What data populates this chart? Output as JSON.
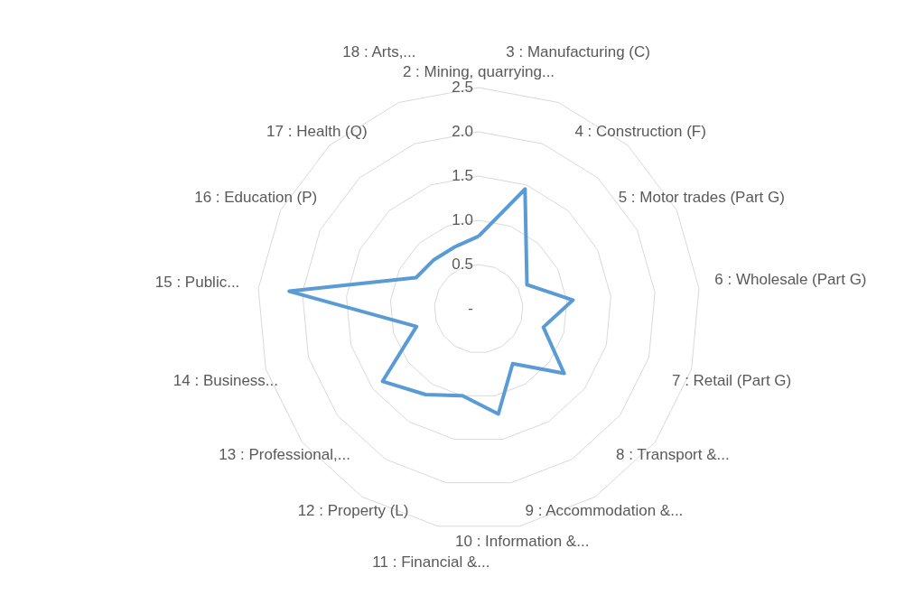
{
  "chart_data": {
    "type": "radar",
    "categories": [
      "2 : Mining, quarrying...",
      "3 : Manufacturing (C)",
      "4 : Construction (F)",
      "5 : Motor trades (Part G)",
      "6 : Wholesale (Part G)",
      "7 : Retail (Part G)",
      "8 : Transport &...",
      "9 : Accommodation &...",
      "10 : Information &...",
      "11 : Financial &...",
      "12 : Property (L)",
      "13 : Professional,...",
      "14 : Business...",
      "15 : Public...",
      "16 : Education (P)",
      "17 : Health (Q)",
      "18 : Arts,..."
    ],
    "series": [
      {
        "color": "#5b9bd5",
        "values": [
          0.82,
          1.45,
          0.8,
          0.61,
          1.07,
          0.76,
          1.21,
          0.73,
          1.21,
          1.0,
          1.14,
          1.36,
          0.73,
          2.15,
          0.79,
          0.75,
          0.75
        ]
      }
    ],
    "ylim": [
      0,
      2.5
    ],
    "yticks": [
      {
        "value": 0,
        "label": "-"
      },
      {
        "value": 0.5,
        "label": "0.5"
      },
      {
        "value": 1,
        "label": "1.0"
      },
      {
        "value": 1.5,
        "label": "1.5"
      },
      {
        "value": 2,
        "label": "2.0"
      },
      {
        "value": 2.5,
        "label": "2.5"
      }
    ],
    "grid": true,
    "marker": "none"
  }
}
